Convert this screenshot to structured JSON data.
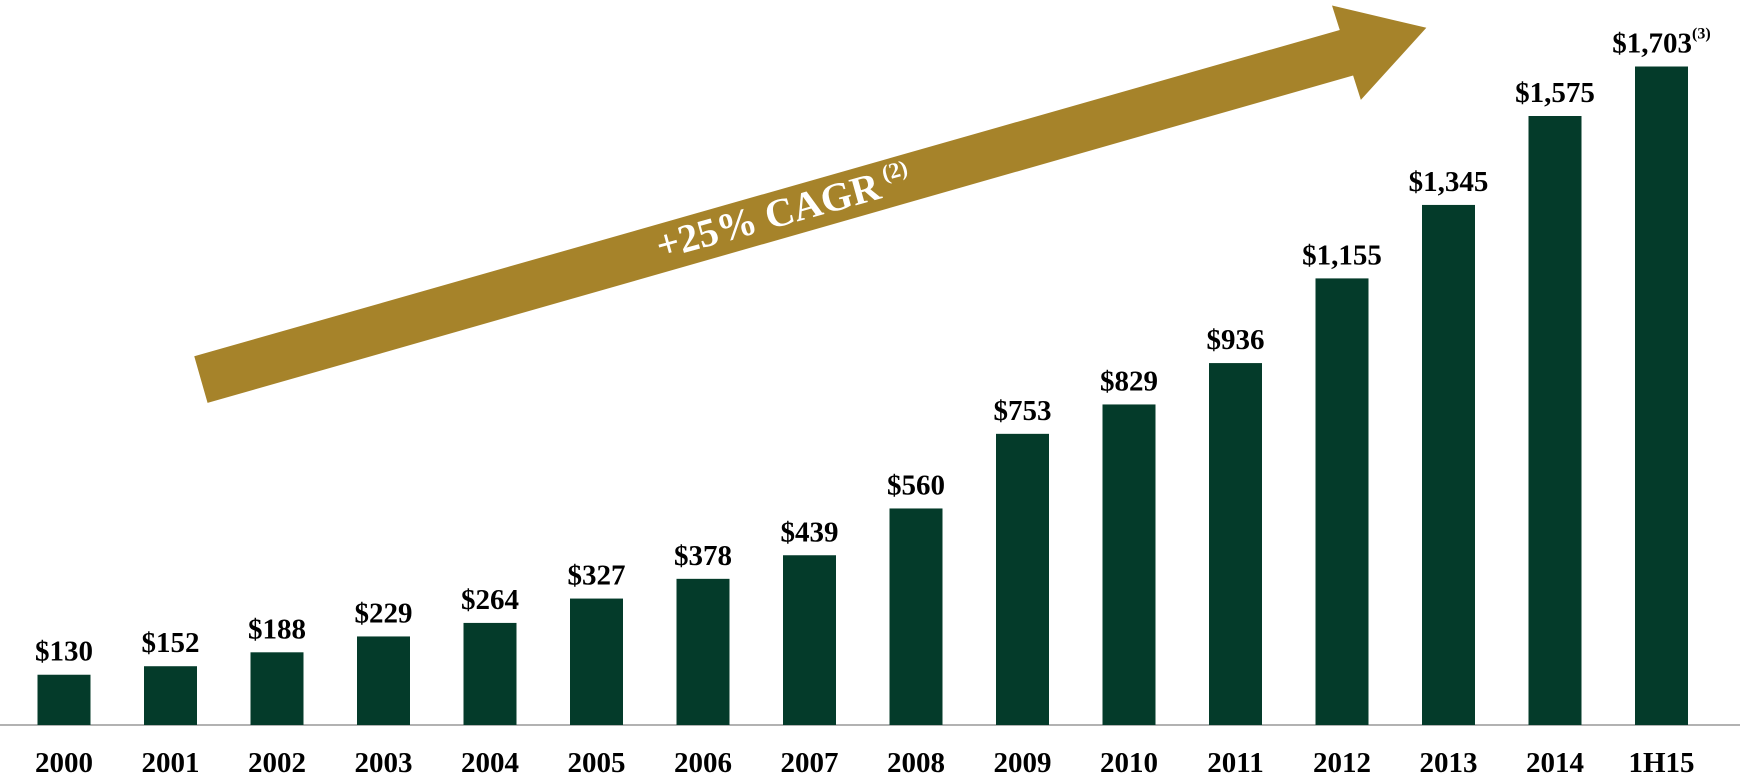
{
  "chart_data": {
    "type": "bar",
    "categories": [
      "2000",
      "2001",
      "2002",
      "2003",
      "2004",
      "2005",
      "2006",
      "2007",
      "2008",
      "2009",
      "2010",
      "2011",
      "2012",
      "2013",
      "2014",
      "1H15"
    ],
    "values": [
      130,
      152,
      188,
      229,
      264,
      327,
      378,
      439,
      560,
      753,
      829,
      936,
      1155,
      1345,
      1575,
      1703
    ],
    "value_labels": [
      "$130",
      "$152",
      "$188",
      "$229",
      "$264",
      "$327",
      "$378",
      "$439",
      "$560",
      "$753",
      "$829",
      "$936",
      "$1,155",
      "$1,345",
      "$1,575",
      "$1,703"
    ],
    "value_label_notes": [
      null,
      null,
      null,
      null,
      null,
      null,
      null,
      null,
      null,
      null,
      null,
      null,
      null,
      null,
      null,
      "(3)"
    ],
    "color": "#043b2a",
    "ylim": [
      0,
      1875
    ],
    "annotation": {
      "text": "+25% CAGR",
      "note": "(2)",
      "color": "#a6832a"
    }
  }
}
